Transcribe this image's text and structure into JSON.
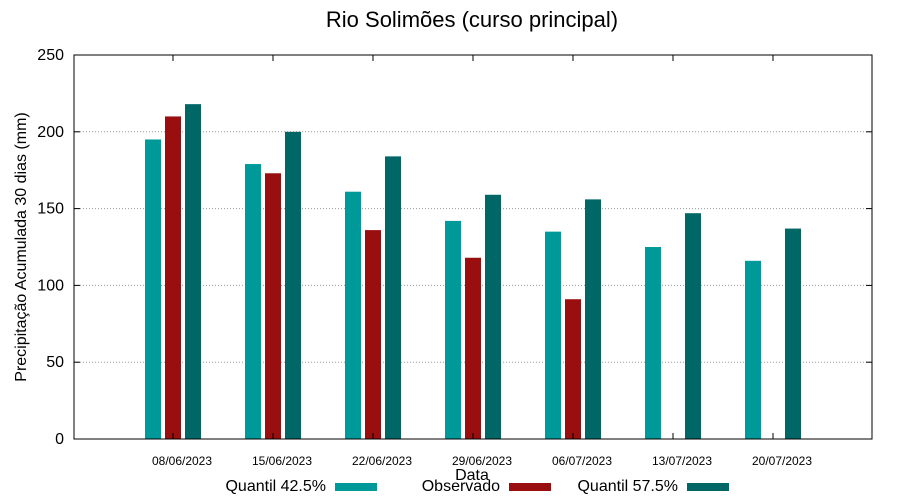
{
  "chart_data": {
    "type": "bar",
    "title": "Rio Solimões (curso principal)",
    "xlabel": "Data",
    "ylabel": "Precipitação Acumulada 30 dias (mm)",
    "ylim": [
      0,
      250
    ],
    "yticks": [
      0,
      50,
      100,
      150,
      200,
      250
    ],
    "grid": true,
    "legend_position": "bottom",
    "categories": [
      "08/06/2023",
      "15/06/2023",
      "22/06/2023",
      "29/06/2023",
      "06/07/2023",
      "13/07/2023",
      "20/07/2023"
    ],
    "series": [
      {
        "name": "Quantil 42.5%",
        "color": "#009999",
        "values": [
          195,
          179,
          161,
          142,
          135,
          125,
          116
        ]
      },
      {
        "name": "Observado",
        "color": "#990f0f",
        "values": [
          210,
          173,
          136,
          118,
          91,
          null,
          null
        ]
      },
      {
        "name": "Quantil 57.5%",
        "color": "#006666",
        "values": [
          218,
          200,
          184,
          159,
          156,
          147,
          137
        ]
      }
    ]
  }
}
